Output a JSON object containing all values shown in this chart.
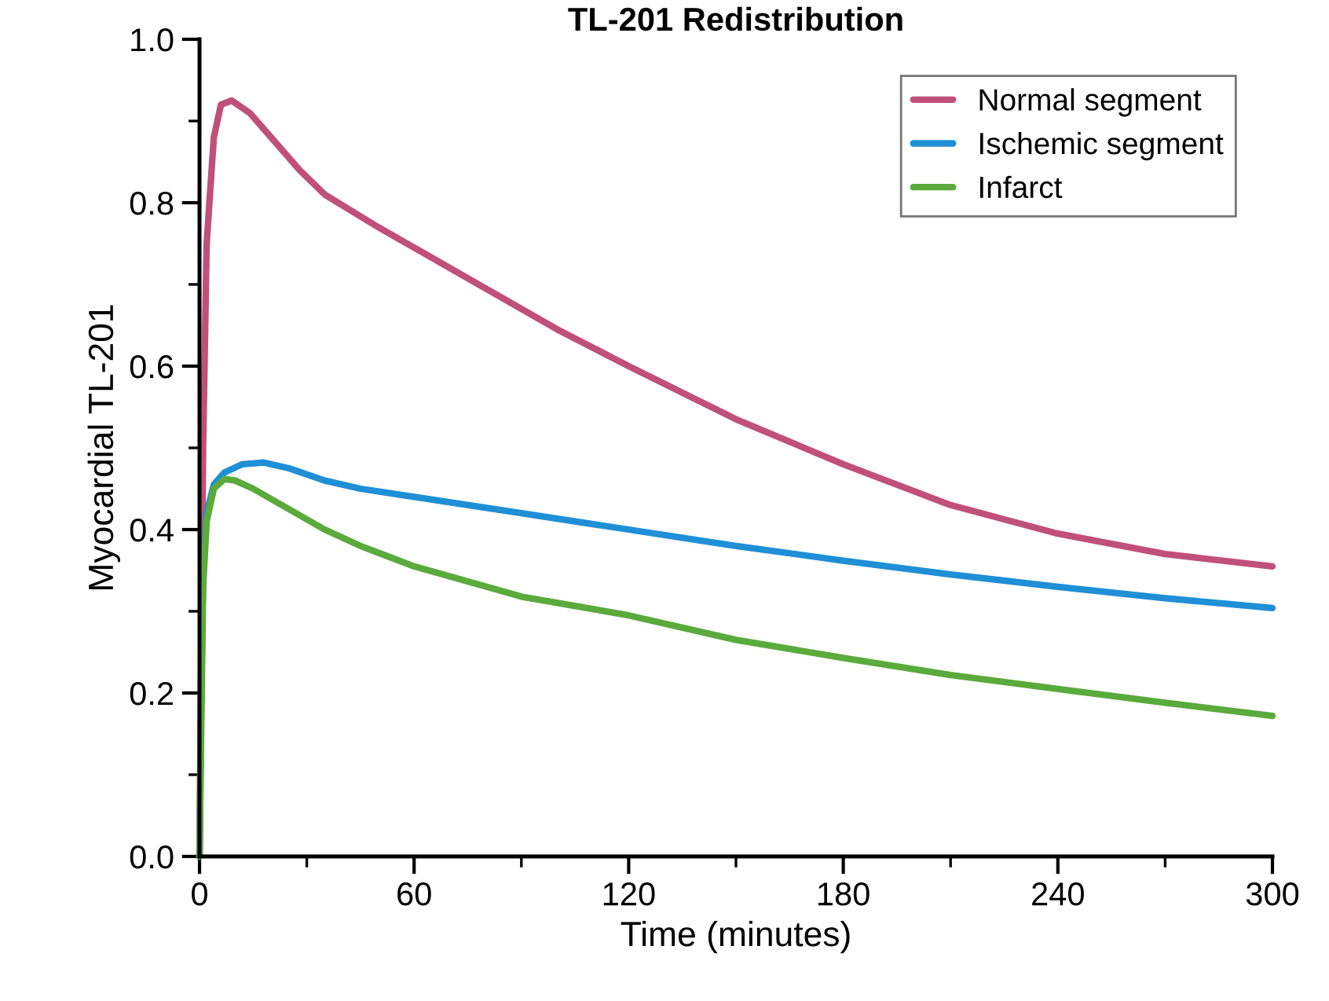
{
  "chart_data": {
    "type": "line",
    "title": "TL-201 Redistribution",
    "xlabel": "Time (minutes)",
    "ylabel": "Myocardial TL-201",
    "xlim": [
      0,
      300
    ],
    "xticks": [
      0,
      60,
      120,
      180,
      240,
      300
    ],
    "ylim": [
      0,
      1.0
    ],
    "yticks": [
      {
        "value": 0,
        "label": "0.0"
      },
      0.2,
      0.4,
      0.6,
      0.8,
      {
        "value": 1.0,
        "label": "1.0"
      }
    ],
    "grid": false,
    "legend": "top right",
    "marker": "none",
    "line_style": "solid",
    "series": [
      {
        "name": "Normal segment",
        "color": "#c0507a",
        "x": [
          0,
          1,
          2,
          4,
          6,
          9,
          14,
          20,
          28,
          35,
          50,
          60,
          80,
          100,
          120,
          150,
          180,
          210,
          240,
          270,
          300
        ],
        "values": [
          0,
          0.5,
          0.75,
          0.88,
          0.92,
          0.925,
          0.91,
          0.88,
          0.84,
          0.81,
          0.77,
          0.745,
          0.695,
          0.645,
          0.6,
          0.535,
          0.48,
          0.43,
          0.395,
          0.37,
          0.355
        ]
      },
      {
        "name": "Ischemic segment",
        "color": "#1f8fd6",
        "x": [
          0,
          0.5,
          1,
          2,
          4,
          7,
          12,
          18,
          25,
          35,
          45,
          60,
          90,
          120,
          150,
          180,
          210,
          240,
          270,
          300
        ],
        "values": [
          0,
          0.2,
          0.35,
          0.42,
          0.455,
          0.47,
          0.48,
          0.482,
          0.475,
          0.46,
          0.45,
          0.44,
          0.42,
          0.4,
          0.38,
          0.362,
          0.345,
          0.33,
          0.316,
          0.304
        ]
      },
      {
        "name": "Infarct",
        "color": "#5aaa3c",
        "x": [
          0,
          1,
          2,
          4,
          7,
          10,
          15,
          25,
          35,
          45,
          60,
          90,
          120,
          150,
          180,
          210,
          240,
          270,
          300
        ],
        "values": [
          0,
          0.33,
          0.41,
          0.45,
          0.462,
          0.46,
          0.45,
          0.425,
          0.4,
          0.38,
          0.355,
          0.318,
          0.295,
          0.265,
          0.243,
          0.222,
          0.205,
          0.188,
          0.172
        ]
      }
    ]
  }
}
